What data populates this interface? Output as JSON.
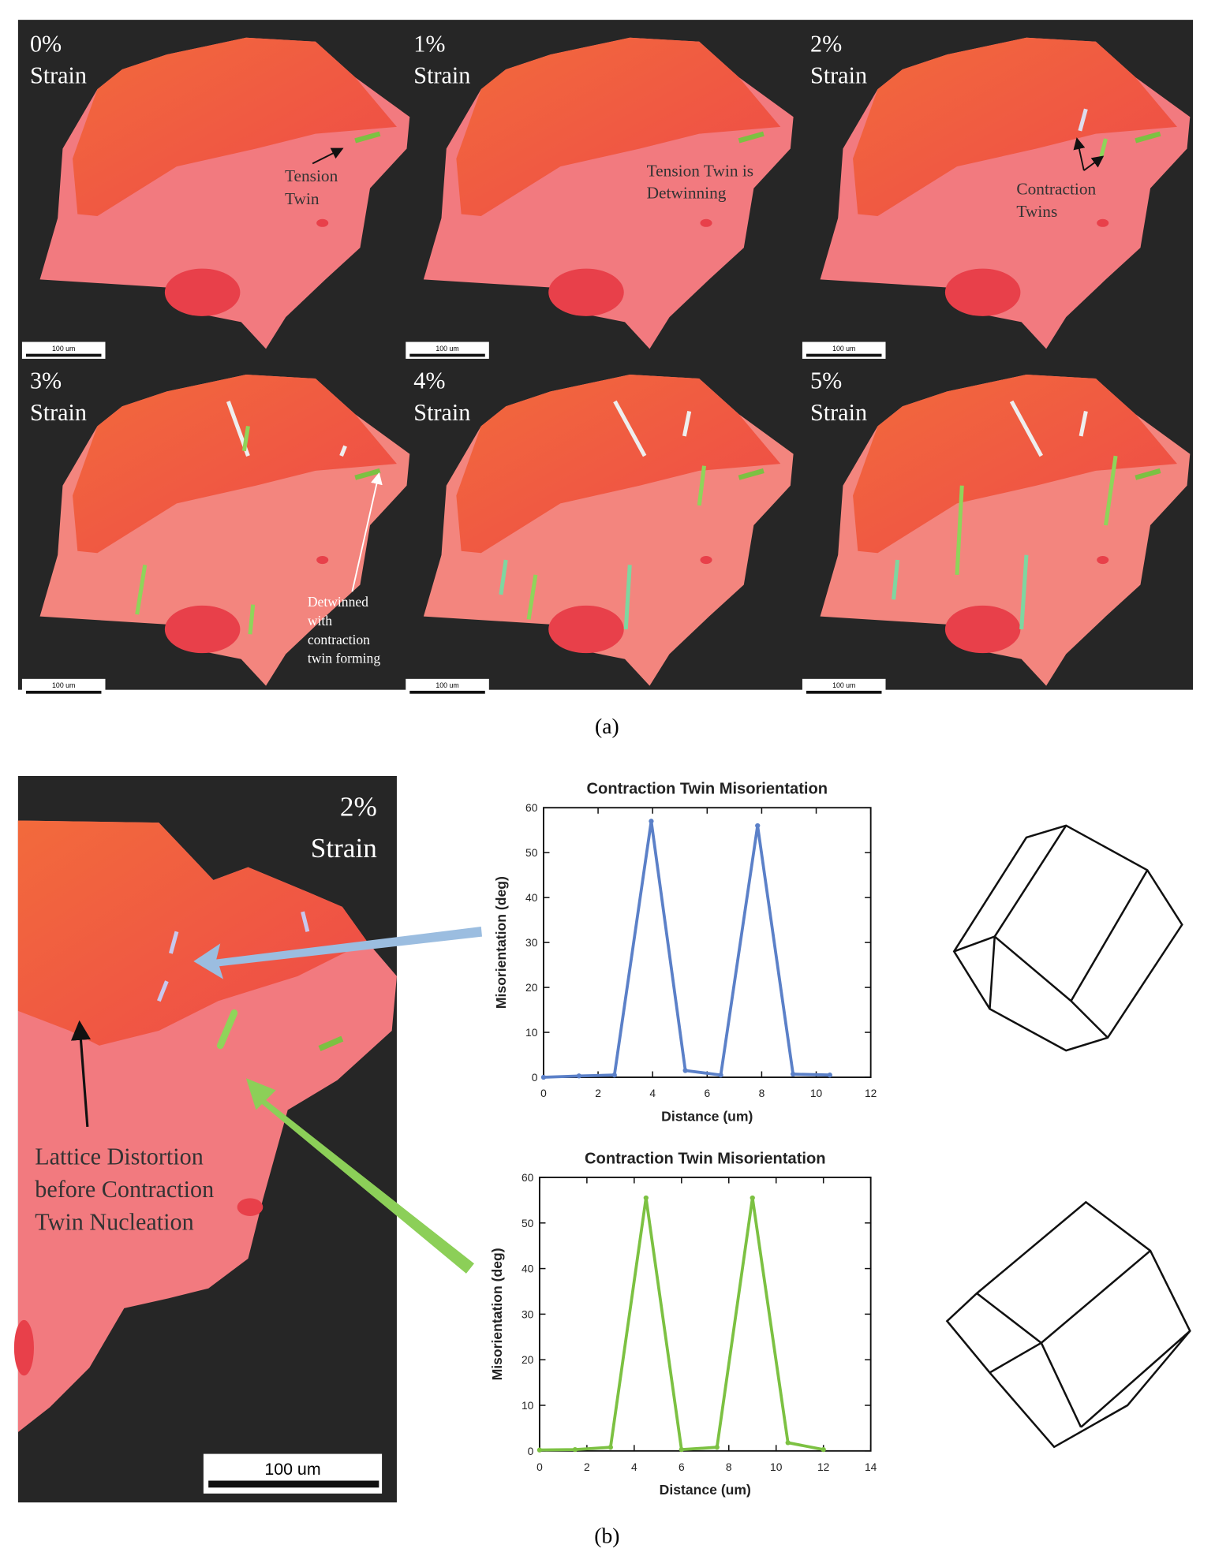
{
  "panel_a": {
    "maps": [
      {
        "strain": "0%",
        "label": "Strain",
        "scale_bar": "100 um"
      },
      {
        "strain": "1%",
        "label": "Strain",
        "scale_bar": "100 um"
      },
      {
        "strain": "2%",
        "label": "Strain",
        "scale_bar": "100 um"
      },
      {
        "strain": "3%",
        "label": "Strain",
        "scale_bar": "100 um"
      },
      {
        "strain": "4%",
        "label": "Strain",
        "scale_bar": "100 um"
      },
      {
        "strain": "5%",
        "label": "Strain",
        "scale_bar": "100 um"
      }
    ],
    "annotations": [
      {
        "lines": [
          "Tension",
          "Twin"
        ]
      },
      {
        "lines": [
          "Tension Twin is",
          "Detwinning"
        ]
      },
      {
        "lines": [
          "Contraction",
          "Twins"
        ]
      },
      {
        "lines": [
          "Detwinned",
          "with",
          "contraction",
          "twin forming"
        ]
      }
    ],
    "caption": "(a)"
  },
  "panel_b": {
    "strain": "2%",
    "label": "Strain",
    "annotation": [
      "Lattice Distortion",
      "before Contraction",
      "Twin Nucleation"
    ],
    "scale_bar": "100 um",
    "caption": "(b)"
  },
  "chart_data": [
    {
      "type": "line",
      "title": "Contraction Twin Misorientation",
      "x_label": "Distance (um)",
      "y_label": "Misorientation (deg)",
      "x": [
        0,
        1.3,
        2.6,
        3.95,
        5.2,
        6.5,
        7.85,
        9.15,
        10.5
      ],
      "values": [
        0,
        0.3,
        0.5,
        57,
        1.5,
        0.5,
        56,
        0.7,
        0.5
      ],
      "color": "#5b80c8",
      "xlim": [
        0,
        12
      ],
      "xticks": [
        0,
        2,
        4,
        6,
        8,
        10,
        12
      ],
      "ylim": [
        0,
        60
      ],
      "yticks": [
        0,
        10,
        20,
        30,
        40,
        50,
        60
      ]
    },
    {
      "type": "line",
      "title": "Contraction Twin Misorientation",
      "x_label": "Distance (um)",
      "y_label": "Misorientation (deg)",
      "x": [
        0,
        1.5,
        3,
        4.5,
        6,
        7.5,
        9,
        10.5,
        12
      ],
      "values": [
        0.2,
        0.3,
        0.8,
        55.5,
        0.3,
        0.8,
        55.5,
        1.8,
        0.3
      ],
      "color": "#7cc142",
      "xlim": [
        0,
        14
      ],
      "xticks": [
        0,
        2,
        4,
        6,
        8,
        10,
        12,
        14
      ],
      "ylim": [
        0,
        60
      ],
      "yticks": [
        0,
        10,
        20,
        30,
        40,
        50,
        60
      ]
    }
  ]
}
